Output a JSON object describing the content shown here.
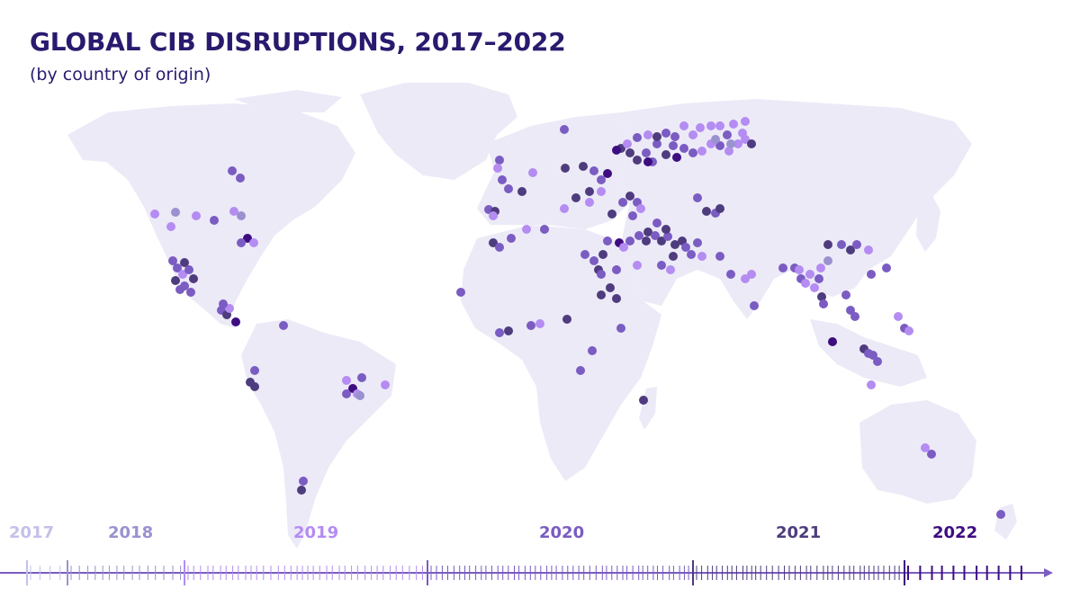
{
  "title": "GLOBAL CIB DISRUPTIONS, 2017–2022",
  "subtitle": "(by country of origin)",
  "colors": {
    "background": "#ffffff",
    "land": "#eceaf7",
    "title": "#2a1a6e",
    "2017": "#c4c0e8",
    "2018": "#9a92cf",
    "2019": "#b48cf2",
    "2020": "#7a5cc2",
    "2021": "#4e3c7e",
    "2022": "#3d0d80"
  },
  "timeline": {
    "years": [
      {
        "label": "2017",
        "density": 1
      },
      {
        "label": "2018",
        "density": 3
      },
      {
        "label": "2019",
        "density": 4
      },
      {
        "label": "2020",
        "density": 5
      },
      {
        "label": "2021",
        "density": 5
      },
      {
        "label": "2022",
        "density": 1
      }
    ]
  }
}
